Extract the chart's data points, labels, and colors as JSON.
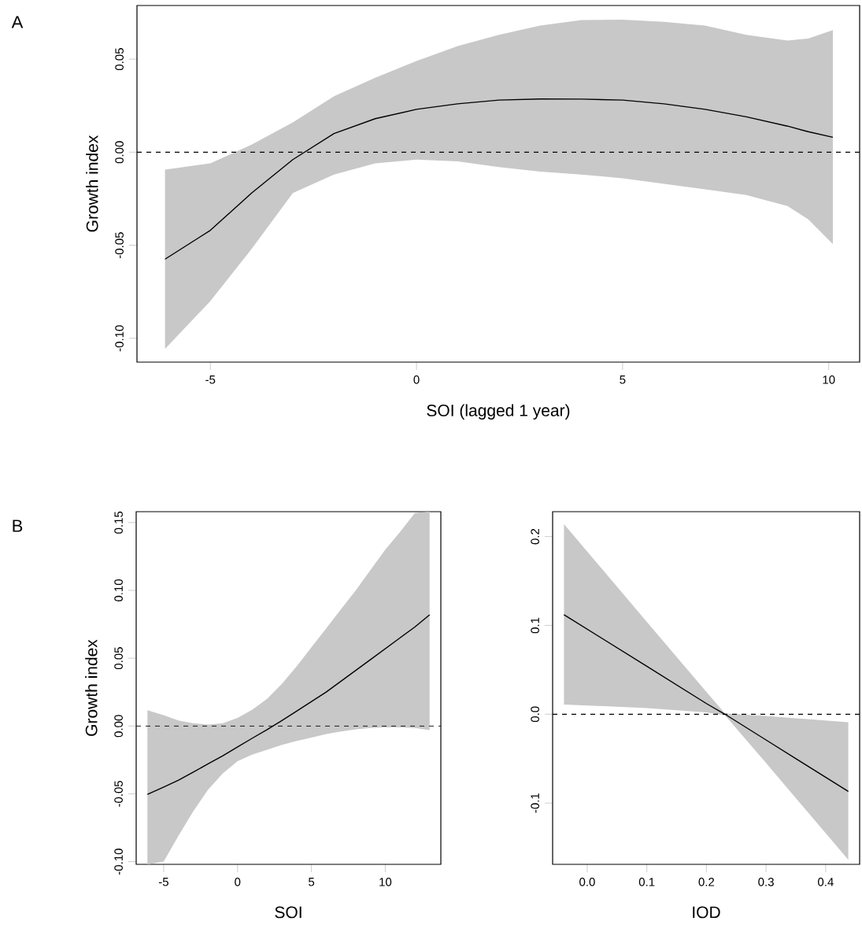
{
  "chart_data": [
    {
      "type": "line",
      "xlabel": "SOI (lagged 1 year)",
      "ylabel": "Growth index",
      "annotations": [
        "A"
      ],
      "x": [
        -6.1,
        -5,
        -4,
        -3,
        -2,
        -1,
        0,
        1,
        2,
        3,
        4,
        5,
        6,
        7,
        8,
        9,
        9.5,
        10.1
      ],
      "series": [
        {
          "color": "#000000",
          "values": [
            -0.0575,
            -0.042,
            -0.022,
            -0.004,
            0.01,
            0.018,
            0.023,
            0.026,
            0.028,
            0.0286,
            0.0285,
            0.028,
            0.026,
            0.023,
            0.019,
            0.014,
            0.011,
            0.008
          ],
          "lower": [
            -0.1057,
            -0.08,
            -0.052,
            -0.022,
            -0.012,
            -0.006,
            -0.004,
            -0.005,
            -0.008,
            -0.0105,
            -0.012,
            -0.014,
            -0.017,
            -0.02,
            -0.023,
            -0.029,
            -0.036,
            -0.0494
          ],
          "upper": [
            -0.0094,
            -0.006,
            0.004,
            0.016,
            0.03,
            0.04,
            0.049,
            0.057,
            0.063,
            0.068,
            0.071,
            0.0712,
            0.07,
            0.068,
            0.063,
            0.06,
            0.061,
            0.0656
          ]
        }
      ],
      "ref_lines": [
        {
          "axis": "y",
          "value": 0,
          "line_style": "dashed"
        }
      ],
      "xlim": [
        -6.78,
        10.75
      ],
      "ylim": [
        -0.1128,
        0.0788
      ],
      "xticks": [
        -5,
        0,
        5,
        10
      ],
      "yticks": [
        {
          "value": -0.1,
          "label": "-0.10"
        },
        {
          "value": -0.05,
          "label": "-0.05"
        },
        {
          "value": 0,
          "label": "0.00"
        },
        {
          "value": 0.05,
          "label": "0.05"
        }
      ]
    },
    {
      "type": "line",
      "xlabel": "SOI",
      "ylabel": "Growth index",
      "annotations": [
        "B"
      ],
      "x": [
        -6.1,
        -5,
        -4,
        -3,
        -2,
        -1,
        0,
        1,
        2,
        3,
        4,
        5,
        6,
        7,
        8,
        9,
        10,
        11,
        12,
        13
      ],
      "series": [
        {
          "color": "#000000",
          "values": [
            -0.0504,
            -0.045,
            -0.04,
            -0.034,
            -0.028,
            -0.022,
            -0.0155,
            -0.009,
            -0.0027,
            0.004,
            0.011,
            0.018,
            0.025,
            0.033,
            0.041,
            0.049,
            0.057,
            0.065,
            0.073,
            0.082
          ],
          "lower": [
            -0.102,
            -0.1,
            -0.081,
            -0.063,
            -0.047,
            -0.035,
            -0.026,
            -0.021,
            -0.0175,
            -0.014,
            -0.011,
            -0.0085,
            -0.006,
            -0.004,
            -0.0025,
            -0.0015,
            -0.001,
            -0.001,
            -0.0015,
            -0.003
          ],
          "upper": [
            0.0116,
            0.008,
            0.004,
            0.002,
            0.001,
            0.002,
            0.006,
            0.012,
            0.02,
            0.031,
            0.044,
            0.058,
            0.072,
            0.086,
            0.1,
            0.115,
            0.13,
            0.143,
            0.157,
            0.158
          ]
        }
      ],
      "ref_lines": [
        {
          "axis": "y",
          "value": 0,
          "line_style": "dashed"
        }
      ],
      "xlim": [
        -6.86,
        13.76
      ],
      "ylim": [
        -0.102,
        0.158
      ],
      "xticks": [
        -5,
        0,
        5,
        10
      ],
      "yticks": [
        {
          "value": -0.1,
          "label": "-0.10"
        },
        {
          "value": -0.05,
          "label": "-0.05"
        },
        {
          "value": 0,
          "label": "0.00"
        },
        {
          "value": 0.05,
          "label": "0.05"
        },
        {
          "value": 0.1,
          "label": "0.10"
        },
        {
          "value": 0.15,
          "label": "0.15"
        }
      ]
    },
    {
      "type": "line",
      "xlabel": "IOD",
      "x": [
        -0.039,
        0.1,
        0.2,
        0.231,
        0.3,
        0.438
      ],
      "series": [
        {
          "color": "#000000",
          "values": [
            0.112,
            0.054,
            0.012,
            0.0,
            -0.029,
            -0.087
          ],
          "lower": [
            0.011,
            0.007,
            0.002,
            -0.001,
            -0.055,
            -0.164
          ],
          "upper": [
            0.214,
            0.104,
            0.025,
            0.001,
            -0.002,
            -0.009
          ]
        }
      ],
      "ref_lines": [
        {
          "axis": "y",
          "value": 0,
          "line_style": "dashed"
        }
      ],
      "xlim": [
        -0.058,
        0.457
      ],
      "ylim": [
        -0.169,
        0.228
      ],
      "xticks": [
        {
          "value": 0,
          "label": "0.0"
        },
        0.1,
        0.2,
        0.3,
        0.4
      ],
      "yticks": [
        -0.1,
        {
          "value": 0,
          "label": "0.0"
        },
        0.1,
        0.2
      ]
    }
  ]
}
